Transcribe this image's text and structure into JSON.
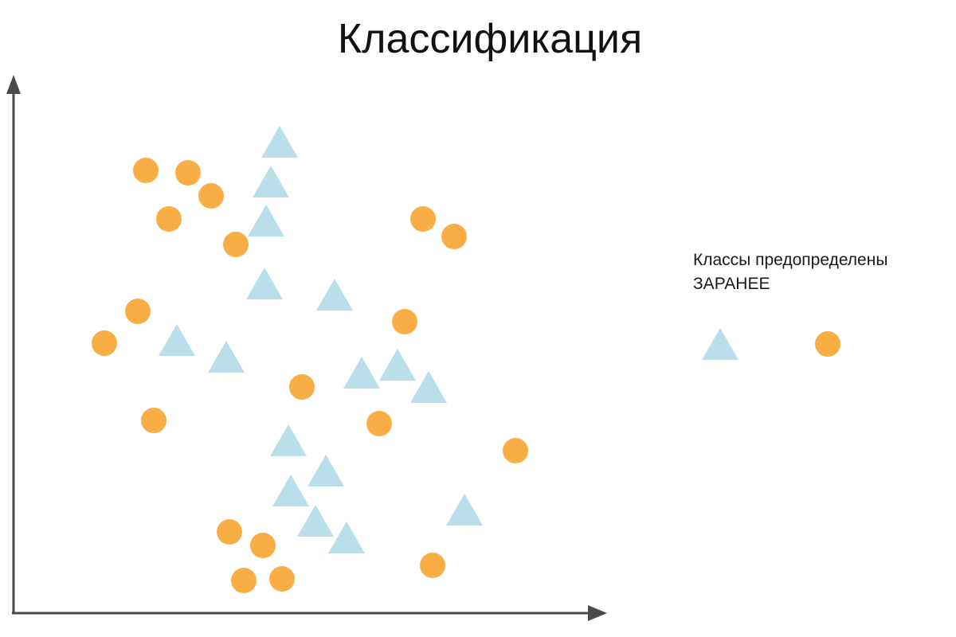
{
  "title": "Классификация",
  "note": {
    "line1": "Классы предопределены",
    "line2": "ЗАРАНЕЕ"
  },
  "colors": {
    "axis": "#4a4a4a",
    "triangle": "#b9dfea",
    "circle": "#f8ae45",
    "title": "#111111"
  },
  "legend": {
    "items": [
      {
        "shape": "triangle"
      },
      {
        "shape": "circle"
      }
    ]
  }
}
